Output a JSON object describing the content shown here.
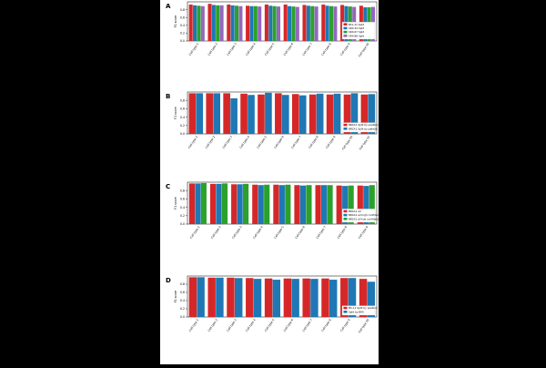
{
  "figure": {
    "background": "#000000",
    "panel_background": "#ffffff"
  },
  "chart_data": [
    {
      "panel": "A",
      "type": "bar",
      "ylabel": "F1 score",
      "ylim": [
        0,
        1
      ],
      "yticks": [
        "0.0",
        "0.2",
        "0.4",
        "0.6",
        "0.8"
      ],
      "legend": "lower-right",
      "categories": [
        "Cell type 1",
        "Cell type 2",
        "Cell type 3",
        "Cell type 4",
        "Cell type 5",
        "Cell type 6",
        "Cell type 7",
        "Cell type 8",
        "Cell type 9",
        "Cell type 10"
      ],
      "series": [
        {
          "name": "BCL-11 Split",
          "color": "#d62728",
          "values": [
            0.93,
            0.95,
            0.93,
            0.9,
            0.93,
            0.93,
            0.92,
            0.93,
            0.92,
            0.9
          ]
        },
        {
          "name": "SRX-34 Split",
          "color": "#1f77b4",
          "values": [
            0.91,
            0.92,
            0.91,
            0.89,
            0.9,
            0.89,
            0.9,
            0.9,
            0.89,
            0.86
          ]
        },
        {
          "name": "SRX-67 Split",
          "color": "#2ca02c",
          "values": [
            0.9,
            0.91,
            0.9,
            0.89,
            0.89,
            0.88,
            0.89,
            0.89,
            0.88,
            0.86
          ]
        },
        {
          "name": "SRX-88 Split",
          "color": "#9467bd",
          "values": [
            0.89,
            0.91,
            0.89,
            0.88,
            0.88,
            0.87,
            0.88,
            0.88,
            0.87,
            0.87
          ]
        }
      ]
    },
    {
      "panel": "B",
      "type": "bar",
      "ylabel": "F1 score",
      "ylim": [
        0,
        1
      ],
      "yticks": [
        "0.0",
        "0.2",
        "0.4",
        "0.6",
        "0.8"
      ],
      "legend": "lower-right",
      "categories": [
        "Cell type 1",
        "Cell type 2",
        "Cell type 3",
        "Cell type 4",
        "Cell type 5",
        "Cell type 6",
        "Cell type 7",
        "Cell type 8",
        "Cell type 9",
        "Cell type 10",
        "Cell type 11"
      ],
      "series": [
        {
          "name": "BRCA1 Split by position",
          "color": "#d62728",
          "values": [
            0.97,
            0.97,
            0.97,
            0.96,
            0.94,
            0.97,
            0.95,
            0.94,
            0.94,
            0.94,
            0.94
          ]
        },
        {
          "name": "BRCA1 Split by patient",
          "color": "#1f77b4",
          "values": [
            0.97,
            0.97,
            0.85,
            0.93,
            0.98,
            0.93,
            0.92,
            0.96,
            0.96,
            0.97,
            0.95
          ]
        }
      ]
    },
    {
      "panel": "C",
      "type": "bar",
      "ylabel": "F1 score",
      "ylim": [
        0,
        1
      ],
      "yticks": [
        "0.0",
        "0.2",
        "0.4",
        "0.6",
        "0.8"
      ],
      "legend": "lower-right",
      "categories": [
        "Cell type 1",
        "Cell type 2",
        "Cell type 3",
        "Cell type 4",
        "Cell type 5",
        "Cell type 6",
        "Cell type 7",
        "Cell type 8",
        "Cell type 9"
      ],
      "series": [
        {
          "name": "BRCA1 all",
          "color": "#d62728",
          "values": [
            0.97,
            0.96,
            0.95,
            0.94,
            0.94,
            0.93,
            0.93,
            0.92,
            0.92
          ]
        },
        {
          "name": "BRCA1 all high confidence",
          "color": "#1f77b4",
          "values": [
            0.97,
            0.96,
            0.95,
            0.93,
            0.93,
            0.92,
            0.93,
            0.91,
            0.91
          ]
        },
        {
          "name": "BRCA1 all low confidence",
          "color": "#2ca02c",
          "values": [
            0.98,
            0.97,
            0.96,
            0.94,
            0.94,
            0.93,
            0.93,
            0.92,
            0.93
          ]
        }
      ]
    },
    {
      "panel": "D",
      "type": "bar",
      "ylabel": "F1 score",
      "ylim": [
        0,
        1
      ],
      "yticks": [
        "0.0",
        "0.2",
        "0.4",
        "0.6",
        "0.8"
      ],
      "legend": "lower-right",
      "categories": [
        "Cell type 1",
        "Cell type 2",
        "Cell type 3",
        "Cell type 4",
        "Cell type 5",
        "Cell type 6",
        "Cell type 7",
        "Cell type 8",
        "Cell type 9",
        "Cell type 10"
      ],
      "series": [
        {
          "name": "BC-11 Split by position",
          "color": "#d62728",
          "values": [
            0.97,
            0.96,
            0.96,
            0.95,
            0.94,
            0.94,
            0.94,
            0.94,
            0.95,
            0.93
          ]
        },
        {
          "name": "Split by BMI",
          "color": "#1f77b4",
          "values": [
            0.97,
            0.96,
            0.95,
            0.93,
            0.91,
            0.93,
            0.93,
            0.91,
            0.95,
            0.86
          ]
        }
      ]
    }
  ]
}
